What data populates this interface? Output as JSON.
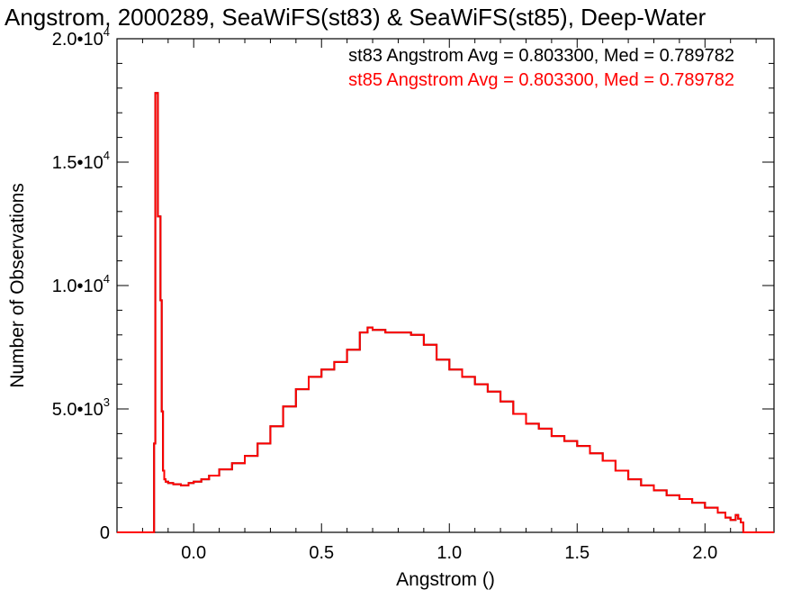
{
  "chart_data": {
    "type": "line",
    "title": "Angstrom, 2000289, SeaWiFS(st83) & SeaWiFS(st85), Deep-Water",
    "xlabel": "Angstrom ()",
    "ylabel": "Number of Observations",
    "xlim": [
      -0.3,
      2.27
    ],
    "ylim": [
      0,
      20000
    ],
    "x_ticks": [
      {
        "value": 0.0,
        "label": "0.0"
      },
      {
        "value": 0.5,
        "label": "0.5"
      },
      {
        "value": 1.0,
        "label": "1.0"
      },
      {
        "value": 1.5,
        "label": "1.5"
      },
      {
        "value": 2.0,
        "label": "2.0"
      }
    ],
    "y_ticks": [
      {
        "value": 0,
        "mant": "0",
        "exp": ""
      },
      {
        "value": 5000,
        "mant": "5.0•10",
        "exp": "3"
      },
      {
        "value": 10000,
        "mant": "1.0•10",
        "exp": "4"
      },
      {
        "value": 15000,
        "mant": "1.5•10",
        "exp": "4"
      },
      {
        "value": 20000,
        "mant": "2.0•10",
        "exp": "4"
      }
    ],
    "grid": false,
    "legend": "top-right",
    "series": [
      {
        "name": "st83 Angstrom Avg = 0.803300, Med = 0.789782",
        "color": "#000000",
        "x": [
          -0.3,
          -0.16,
          -0.155,
          -0.15,
          -0.145,
          -0.14,
          -0.135,
          -0.13,
          -0.125,
          -0.12,
          -0.115,
          -0.11,
          -0.1,
          -0.08,
          -0.05,
          -0.02,
          0.0,
          0.03,
          0.06,
          0.1,
          0.15,
          0.2,
          0.25,
          0.3,
          0.35,
          0.4,
          0.45,
          0.5,
          0.55,
          0.6,
          0.65,
          0.68,
          0.7,
          0.75,
          0.8,
          0.85,
          0.9,
          0.95,
          1.0,
          1.05,
          1.1,
          1.15,
          1.2,
          1.25,
          1.3,
          1.35,
          1.4,
          1.45,
          1.5,
          1.55,
          1.6,
          1.65,
          1.7,
          1.75,
          1.8,
          1.85,
          1.9,
          1.95,
          2.0,
          2.05,
          2.08,
          2.1,
          2.12,
          2.13,
          2.14,
          2.15,
          2.27
        ],
        "y": [
          0,
          0,
          3600,
          17800,
          17800,
          12800,
          12800,
          9400,
          4900,
          2500,
          2150,
          2050,
          2000,
          1950,
          1900,
          2000,
          2050,
          2150,
          2300,
          2550,
          2800,
          3100,
          3600,
          4300,
          5100,
          5800,
          6300,
          6600,
          6900,
          7400,
          8100,
          8300,
          8200,
          8100,
          8100,
          8000,
          7600,
          7000,
          6600,
          6300,
          6000,
          5700,
          5300,
          4800,
          4400,
          4200,
          3900,
          3700,
          3500,
          3200,
          2900,
          2500,
          2150,
          1900,
          1700,
          1500,
          1350,
          1200,
          1000,
          800,
          600,
          500,
          700,
          550,
          400,
          0,
          0
        ]
      },
      {
        "name": "st85 Angstrom Avg = 0.803300, Med = 0.789782",
        "color": "#ff0000",
        "x": [
          -0.3,
          -0.16,
          -0.155,
          -0.15,
          -0.145,
          -0.14,
          -0.135,
          -0.13,
          -0.125,
          -0.12,
          -0.115,
          -0.11,
          -0.1,
          -0.08,
          -0.05,
          -0.02,
          0.0,
          0.03,
          0.06,
          0.1,
          0.15,
          0.2,
          0.25,
          0.3,
          0.35,
          0.4,
          0.45,
          0.5,
          0.55,
          0.6,
          0.65,
          0.68,
          0.7,
          0.75,
          0.8,
          0.85,
          0.9,
          0.95,
          1.0,
          1.05,
          1.1,
          1.15,
          1.2,
          1.25,
          1.3,
          1.35,
          1.4,
          1.45,
          1.5,
          1.55,
          1.6,
          1.65,
          1.7,
          1.75,
          1.8,
          1.85,
          1.9,
          1.95,
          2.0,
          2.05,
          2.08,
          2.1,
          2.12,
          2.13,
          2.14,
          2.15,
          2.27
        ],
        "y": [
          0,
          0,
          3600,
          17800,
          17800,
          12800,
          12800,
          9400,
          4900,
          2500,
          2150,
          2050,
          2000,
          1950,
          1900,
          2000,
          2050,
          2150,
          2300,
          2550,
          2800,
          3100,
          3600,
          4300,
          5100,
          5800,
          6300,
          6600,
          6900,
          7400,
          8100,
          8300,
          8200,
          8100,
          8100,
          8000,
          7600,
          7000,
          6600,
          6300,
          6000,
          5700,
          5300,
          4800,
          4400,
          4200,
          3900,
          3700,
          3500,
          3200,
          2900,
          2500,
          2150,
          1900,
          1700,
          1500,
          1350,
          1200,
          1000,
          800,
          600,
          500,
          700,
          550,
          400,
          0,
          0
        ]
      }
    ]
  }
}
